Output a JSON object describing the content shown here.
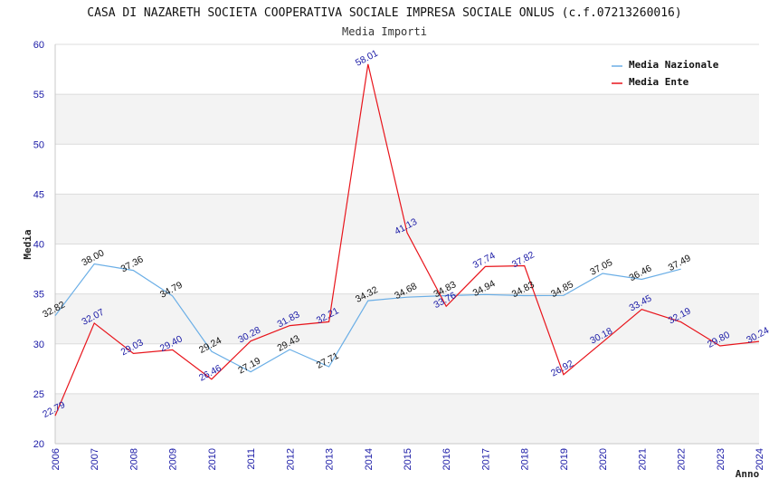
{
  "chart_data": {
    "type": "line",
    "title": "CASA DI NAZARETH SOCIETA COOPERATIVA SOCIALE IMPRESA SOCIALE ONLUS (c.f.07213260016)",
    "subtitle": "Media Importi",
    "xlabel": "Anno",
    "ylabel": "Media",
    "ylim": [
      20,
      60
    ],
    "yticks": [
      "20",
      "25",
      "30",
      "35",
      "40",
      "45",
      "50",
      "55",
      "60"
    ],
    "categories": [
      "2006",
      "2007",
      "2008",
      "2009",
      "2010",
      "2011",
      "2012",
      "2013",
      "2014",
      "2015",
      "2016",
      "2017",
      "2018",
      "2019",
      "2020",
      "2021",
      "2022",
      "2023",
      "2024"
    ],
    "legend_position": "top-right",
    "series": [
      {
        "name": "Media Nazionale",
        "color": "#6aaee6",
        "label_color": "#111111",
        "values": [
          32.82,
          38.0,
          37.36,
          34.79,
          29.24,
          27.19,
          29.43,
          27.71,
          34.32,
          34.68,
          34.83,
          34.94,
          34.83,
          34.85,
          37.05,
          36.46,
          37.49,
          null,
          null
        ],
        "labels": [
          "32.82",
          "38.00",
          "37.36",
          "34.79",
          "29.24",
          "27.19",
          "29.43",
          "27.71",
          "34.32",
          "34.68",
          "34.83",
          "34.94",
          "34.83",
          "34.85",
          "37.05",
          "36.46",
          "37.49",
          null,
          null
        ]
      },
      {
        "name": "Media Ente",
        "color": "#e8141b",
        "label_color": "#1a1aa6",
        "values": [
          22.79,
          32.07,
          29.03,
          29.4,
          26.46,
          30.28,
          31.83,
          32.21,
          58.01,
          41.13,
          33.76,
          37.74,
          37.82,
          26.92,
          30.18,
          33.45,
          32.19,
          29.8,
          30.24
        ],
        "labels": [
          "22.79",
          "32.07",
          "29.03",
          "29.40",
          "26.46",
          "30.28",
          "31.83",
          "32.21",
          "58.01",
          "41.13",
          "33.76",
          "37.74",
          "37.82",
          "26.92",
          "30.18",
          "33.45",
          "32.19",
          "29.80",
          "30.24"
        ]
      }
    ]
  }
}
